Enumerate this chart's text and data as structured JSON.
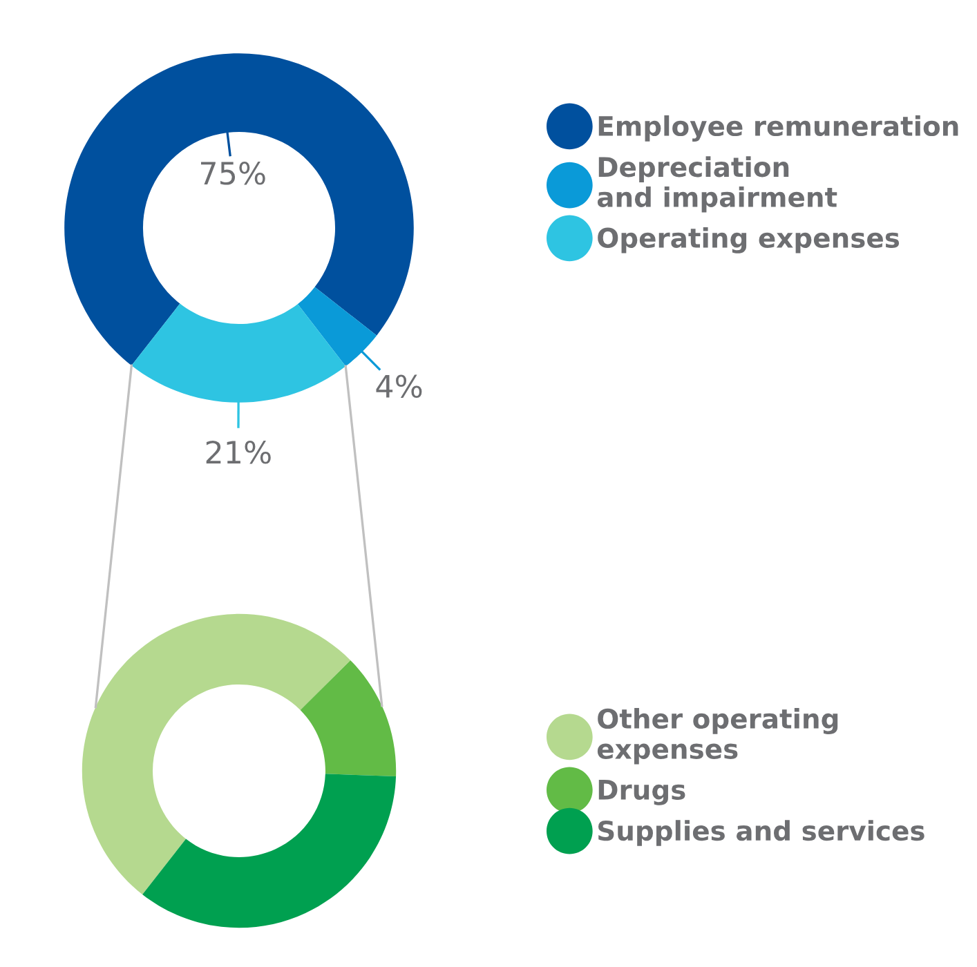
{
  "chart_data": [
    {
      "type": "donut",
      "categories": [
        "Employee remuneration",
        "Depreciation\nand impairment",
        "Operating expenses"
      ],
      "values": [
        75,
        4,
        21
      ],
      "colors": [
        "#00509e",
        "#0a9ad8",
        "#2ec4e2"
      ],
      "value_labels": [
        "75%",
        "4%",
        "21%"
      ],
      "legend": "right"
    },
    {
      "type": "donut",
      "categories": [
        "Other operating\nexpenses",
        "Drugs",
        "Supplies and services"
      ],
      "values": [
        52,
        13,
        35
      ],
      "colors": [
        "#b5d98f",
        "#62bb46",
        "#00a050"
      ],
      "legend": "right"
    }
  ]
}
